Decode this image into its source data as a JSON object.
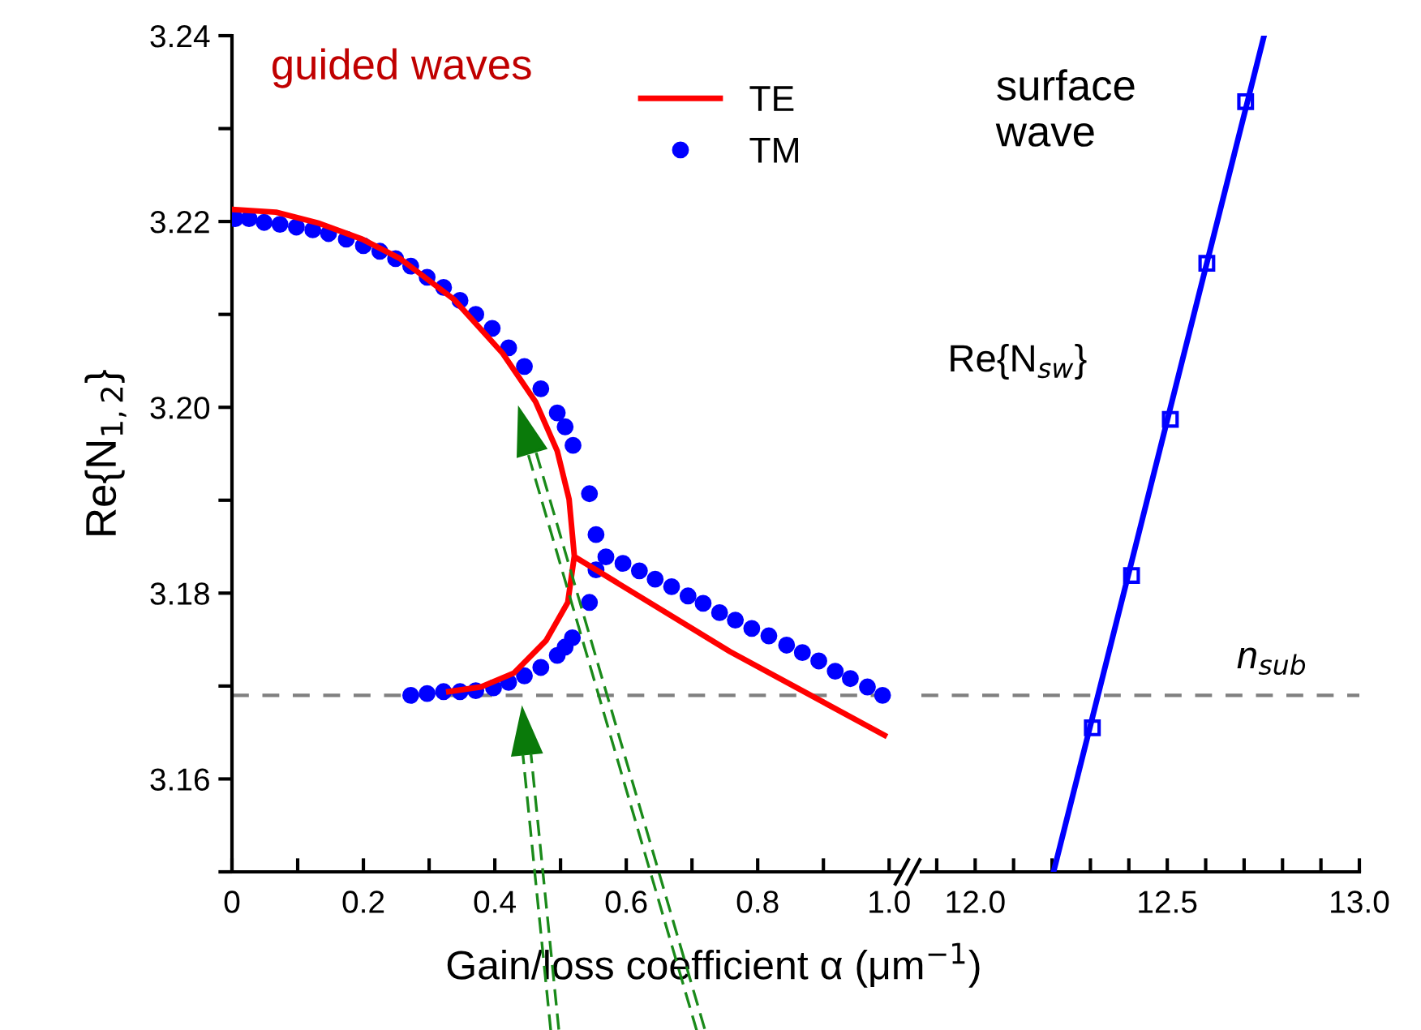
{
  "chart_data": [
    {
      "type": "line",
      "ylabel": "Re{N$_{1,2}$}",
      "xlabel": "Gain/loss coefficient α (μm$^{−1}$)",
      "xlim": [
        0,
        1.017
      ],
      "ylim": [
        3.15,
        3.24
      ],
      "xticks": [
        0,
        {
          "value": 0.1,
          "label": null
        },
        0.2,
        {
          "value": 0.3,
          "label": null
        },
        0.4,
        {
          "value": 0.5,
          "label": null
        },
        0.6,
        {
          "value": 0.7,
          "label": null
        },
        0.8,
        {
          "value": 0.9,
          "label": null
        },
        {
          "value": 1.0,
          "label": "1.0"
        }
      ],
      "yticks": [
        {
          "value": 3.15,
          "label": null
        },
        3.16,
        {
          "value": 3.17,
          "label": null
        },
        3.18,
        {
          "value": 3.19,
          "label": null
        },
        {
          "value": 3.2,
          "label": "3.20"
        },
        {
          "value": 3.21,
          "label": null
        },
        3.22,
        {
          "value": 3.23,
          "label": null
        },
        3.24
      ],
      "legend": "top right",
      "annotations": [
        "guided waves"
      ],
      "ref_lines": [
        {
          "axis": "y",
          "value": 3.169,
          "color": "#808080",
          "line_style": "dashed"
        }
      ],
      "series": [
        {
          "name": "TE",
          "color": "#ff0000",
          "marker": "none",
          "line_style": "solid",
          "x": [
            0,
            0.067,
            0.133,
            0.198,
            0.256,
            0.338,
            0.412,
            0.462,
            0.495,
            0.513,
            0.521,
            0.511,
            0.478,
            0.429,
            0.379,
            0.33,
            0.522,
            0.524,
            0.758,
            0.993
          ],
          "values": [
            3.2213,
            3.221,
            3.2198,
            3.2181,
            3.216,
            3.2116,
            3.2058,
            3.2006,
            3.1953,
            3.1901,
            3.184,
            3.179,
            3.1749,
            3.1714,
            3.1699,
            3.1694,
            null,
            3.1838,
            3.1737,
            3.1647
          ]
        },
        {
          "name": "TM",
          "type": "scatter",
          "color": "#0000ff",
          "marker": "circle",
          "x": [
            0.005,
            0.026,
            0.049,
            0.073,
            0.098,
            0.123,
            0.147,
            0.174,
            0.2,
            0.225,
            0.249,
            0.272,
            0.297,
            0.322,
            0.347,
            0.371,
            0.396,
            0.421,
            0.445,
            0.47,
            0.495,
            0.507,
            0.519,
            0.544,
            0.554,
            0.569,
            0.595,
            0.62,
            0.644,
            0.669,
            0.694,
            0.717,
            0.742,
            0.766,
            0.791,
            0.817,
            0.844,
            0.868,
            0.893,
            0.918,
            0.941,
            0.967,
            0.99,
            0.272,
            0.297,
            0.322,
            0.347,
            0.371,
            0.398,
            0.421,
            0.445,
            0.47,
            0.495,
            0.507,
            0.518,
            0.544,
            0.554
          ],
          "values": [
            3.2203,
            3.2203,
            3.2199,
            3.2197,
            3.2194,
            3.2191,
            3.2187,
            3.2181,
            3.2174,
            3.2168,
            3.216,
            3.2152,
            3.214,
            3.2129,
            3.2115,
            3.21,
            3.2085,
            3.2064,
            3.2044,
            3.202,
            3.1994,
            3.1979,
            3.1959,
            3.1907,
            3.1863,
            3.1839,
            3.1832,
            3.1824,
            3.1815,
            3.1807,
            3.1797,
            3.1789,
            3.1779,
            3.1771,
            3.1762,
            3.1754,
            3.1744,
            3.1736,
            3.1727,
            3.1716,
            3.1708,
            3.1699,
            3.169,
            3.169,
            3.1692,
            3.1694,
            3.1694,
            3.1695,
            3.1698,
            3.1704,
            3.1711,
            3.172,
            3.1733,
            3.1742,
            3.1752,
            3.179,
            3.1825
          ]
        }
      ]
    },
    {
      "type": "line",
      "xlim": [
        11.86,
        13.0
      ],
      "ylim": [
        3.15,
        3.24
      ],
      "tick_labels": "x",
      "xticks": [
        {
          "value": 11.9,
          "label": null
        },
        {
          "value": 12.0,
          "label": "12.0"
        },
        {
          "value": 12.1,
          "label": null
        },
        {
          "value": 12.2,
          "label": null
        },
        {
          "value": 12.3,
          "label": null
        },
        {
          "value": 12.4,
          "label": null
        },
        12.5,
        {
          "value": 12.6,
          "label": null
        },
        {
          "value": 12.7,
          "label": null
        },
        {
          "value": 12.8,
          "label": null
        },
        {
          "value": 12.9,
          "label": null
        },
        {
          "value": 13.0,
          "label": "13.0"
        }
      ],
      "annotations": [
        "surface\nwave",
        "Re{N$_{sw}$}"
      ],
      "ref_lines": [
        {
          "axis": "y",
          "value": 3.169,
          "label": "n$_{sub}$",
          "color": "#808080",
          "line_style": "dashed"
        }
      ],
      "series": [
        {
          "color": "#0000ff",
          "marker": "none",
          "line_style": "solid",
          "x": [
            12.204,
            12.752
          ],
          "values": [
            3.15,
            3.24
          ]
        },
        {
          "type": "scatter",
          "color": "#0000ff",
          "marker": "square",
          "x": [
            12.305,
            12.407,
            12.508,
            12.603,
            12.704
          ],
          "values": [
            3.1655,
            3.1819,
            3.1987,
            3.2155,
            3.2329
          ]
        }
      ]
    }
  ]
}
